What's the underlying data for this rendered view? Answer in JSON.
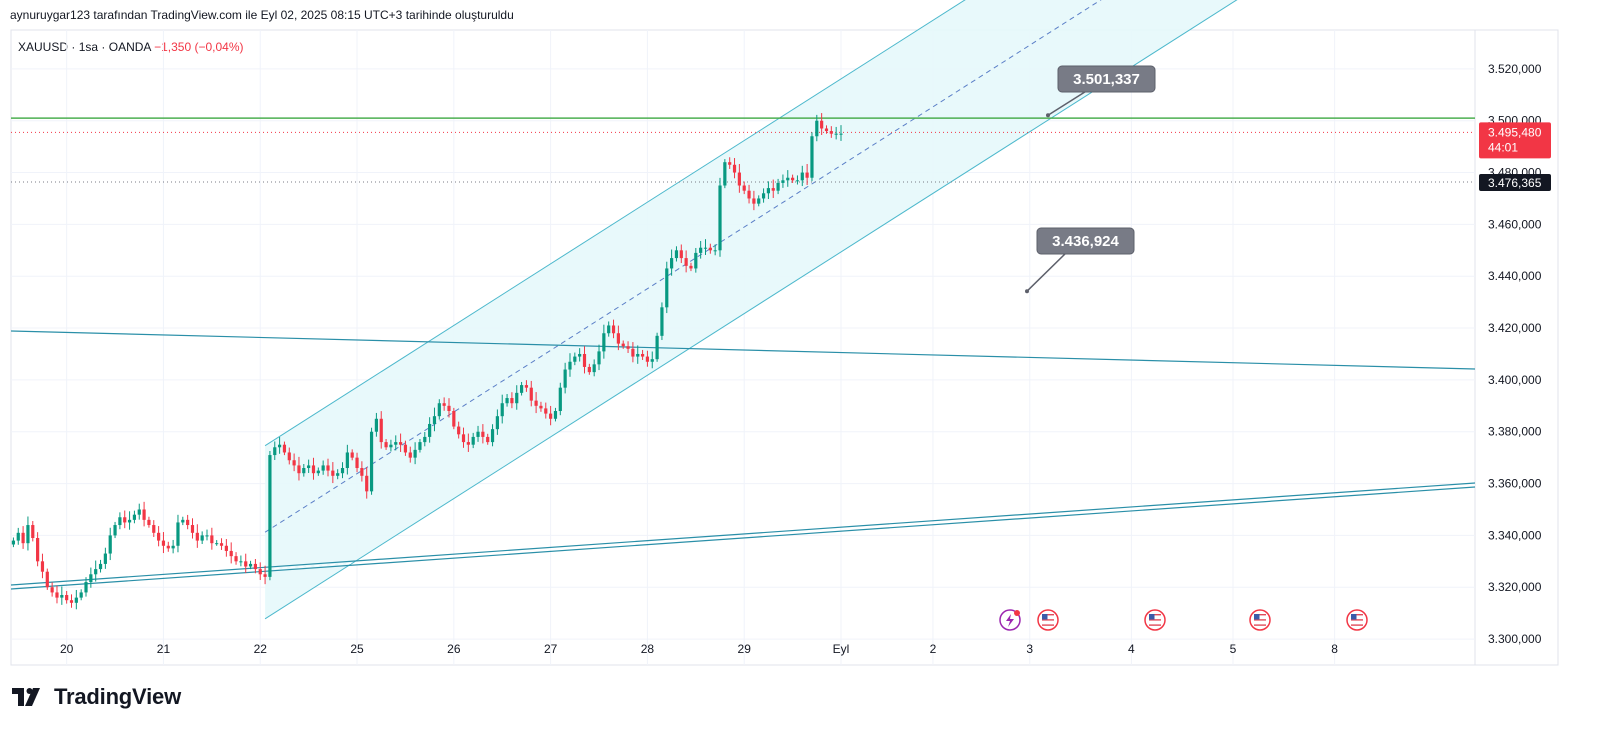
{
  "header": {
    "attribution": "aynuruygar123 tarafından TradingView.com ile Eyl 02, 2025 08:15 UTC+3 tarihinde oluşturuldu"
  },
  "symbol": {
    "name": "XAUUSD",
    "interval": "1sa",
    "source": "OANDA",
    "change": "−1,350 (−0,04%)"
  },
  "brand": {
    "name": "TradingView"
  },
  "colors": {
    "up": "#089981",
    "down": "#f23645",
    "channel": "#4cb8cc",
    "channel_fill": "#e6f8fb",
    "horizontal": "#4caf50",
    "trendline": "#2a8fa8",
    "callout": "#787b86"
  },
  "chart_data": {
    "type": "candlestick",
    "ylim": [
      3290,
      3535
    ],
    "y_ticks": [
      {
        "value": 3300,
        "label": "3.300,000"
      },
      {
        "value": 3320,
        "label": "3.320,000"
      },
      {
        "value": 3340,
        "label": "3.340,000"
      },
      {
        "value": 3360,
        "label": "3.360,000"
      },
      {
        "value": 3380,
        "label": "3.380,000"
      },
      {
        "value": 3400,
        "label": "3.400,000"
      },
      {
        "value": 3420,
        "label": "3.420,000"
      },
      {
        "value": 3440,
        "label": "3.440,000"
      },
      {
        "value": 3460,
        "label": "3.460,000"
      },
      {
        "value": 3480,
        "label": "3.480,000"
      },
      {
        "value": 3500,
        "label": "3.500,000"
      },
      {
        "value": 3520,
        "label": "3.520,000"
      }
    ],
    "x_ticks": [
      {
        "i": 11,
        "label": "20"
      },
      {
        "i": 31,
        "label": "21"
      },
      {
        "i": 51,
        "label": "22"
      },
      {
        "i": 71,
        "label": "25"
      },
      {
        "i": 91,
        "label": "26"
      },
      {
        "i": 111,
        "label": "27"
      },
      {
        "i": 131,
        "label": "28"
      },
      {
        "i": 151,
        "label": "29"
      },
      {
        "i": 171,
        "label": "Eyl"
      },
      {
        "i": 190,
        "label": "2"
      },
      {
        "i": 210,
        "label": "3"
      },
      {
        "i": 231,
        "label": "4"
      },
      {
        "i": 252,
        "label": "5"
      },
      {
        "i": 273,
        "label": "8"
      }
    ],
    "x_range": [
      -0.5,
      302
    ],
    "prices": [
      3338,
      3341,
      3337,
      3344,
      3339,
      3330,
      3326,
      3320,
      3318,
      3316,
      3317,
      3315,
      3314,
      3316,
      3318,
      3322,
      3325,
      3327,
      3329,
      3333,
      3340,
      3344,
      3347,
      3345,
      3346,
      3348,
      3350,
      3346,
      3344,
      3341,
      3338,
      3336,
      3335,
      3336,
      3345,
      3346,
      3344,
      3341,
      3338,
      3340,
      3340,
      3337,
      3337,
      3336,
      3334,
      3332,
      3330,
      3330,
      3328,
      3329,
      3327,
      3325,
      3324,
      3371,
      3374,
      3375,
      3372,
      3369,
      3367,
      3364,
      3366,
      3367,
      3364,
      3365,
      3367,
      3365,
      3363,
      3364,
      3366,
      3372,
      3370,
      3366,
      3363,
      3357,
      3380,
      3385,
      3376,
      3374,
      3375,
      3376,
      3375,
      3372,
      3370,
      3373,
      3376,
      3378,
      3383,
      3386,
      3391,
      3390,
      3388,
      3382,
      3379,
      3376,
      3375,
      3378,
      3380,
      3378,
      3376,
      3381,
      3386,
      3391,
      3393,
      3391,
      3395,
      3398,
      3397,
      3392,
      3390,
      3389,
      3387,
      3385,
      3388,
      3397,
      3404,
      3407,
      3409,
      3410,
      3405,
      3403,
      3406,
      3411,
      3418,
      3421,
      3418,
      3414,
      3413,
      3412,
      3409,
      3410,
      3409,
      3407,
      3408,
      3417,
      3428,
      3443,
      3447,
      3450,
      3447,
      3444,
      3443,
      3449,
      3451,
      3451,
      3450,
      3450,
      3475,
      3484,
      3483,
      3480,
      3475,
      3473,
      3470,
      3468,
      3470,
      3472,
      3474,
      3473,
      3476,
      3477,
      3478,
      3477,
      3477,
      3480,
      3478,
      3494,
      3500,
      3497,
      3496,
      3495,
      3495,
      3495
    ],
    "current_price_label": "3.495,480",
    "countdown_label": "44:01",
    "current_price_value": 3495.48,
    "dotted_level_label": "3.476,365",
    "dotted_level_value": 3476.365,
    "horizontal_level": 3501.0,
    "callouts": [
      {
        "label": "3.501,337",
        "value": 3501.337
      },
      {
        "label": "3.436,924",
        "value": 3436.924
      }
    ]
  }
}
